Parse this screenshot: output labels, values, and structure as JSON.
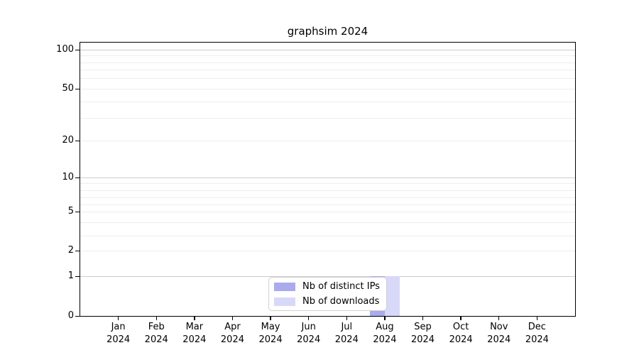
{
  "chart_data": {
    "type": "bar",
    "title": "graphsim 2024",
    "x_categories": [
      "Jan",
      "Feb",
      "Mar",
      "Apr",
      "May",
      "Jun",
      "Jul",
      "Aug",
      "Sep",
      "Oct",
      "Nov",
      "Dec"
    ],
    "x_year": "2024",
    "series": [
      {
        "name": "Nb of distinct IPs",
        "color": "#aaaaee",
        "values": [
          0,
          0,
          0,
          0,
          0,
          0,
          0,
          1,
          0,
          0,
          0,
          0
        ]
      },
      {
        "name": "Nb of downloads",
        "color": "#d8d8f8",
        "values": [
          0,
          0,
          0,
          0,
          0,
          0,
          0,
          1,
          0,
          0,
          0,
          0
        ]
      }
    ],
    "y_axis": {
      "scale": "log-like (0-1 linear, logarithmic above)",
      "tick_labels": [
        0,
        1,
        2,
        5,
        10,
        20,
        50,
        100
      ],
      "major_gridlines": [
        1,
        10,
        100
      ],
      "minor_gridlines": [
        2,
        3,
        4,
        5,
        6,
        7,
        8,
        9,
        20,
        30,
        40,
        50,
        60,
        70,
        80,
        90
      ],
      "ylim": [
        0,
        115
      ]
    },
    "legend": {
      "position": "bottom-center",
      "entries": [
        "Nb of distinct IPs",
        "Nb of downloads"
      ]
    },
    "colors": {
      "distinct_ips_bar": "#aaaaee",
      "downloads_bar": "#d8d8f8",
      "major_grid": "#cccccc",
      "minor_grid": "#ededed",
      "axis": "#000000",
      "background": "#ffffff"
    },
    "grid": "horizontal only",
    "bar_values_note": "single data point: Aug 2024, distinct IPs = 1, downloads = 1"
  }
}
